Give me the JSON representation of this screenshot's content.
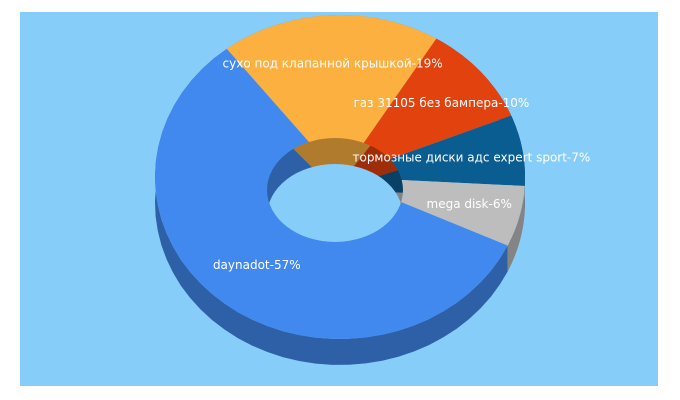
{
  "chart_data": {
    "type": "donut3d",
    "values": [
      57,
      19,
      10,
      7,
      6
    ],
    "value_labels": [
      "daynadot-57%",
      "сухо под клапанной крышкой-19%",
      "газ 31105 без бампера-10%",
      "тормозные диски адс expert sport-7%",
      "mega disk-6%"
    ],
    "colors": [
      "#4189ef",
      "#fbb040",
      "#e2420d",
      "#0a5d91",
      "#bdbdbd"
    ]
  }
}
